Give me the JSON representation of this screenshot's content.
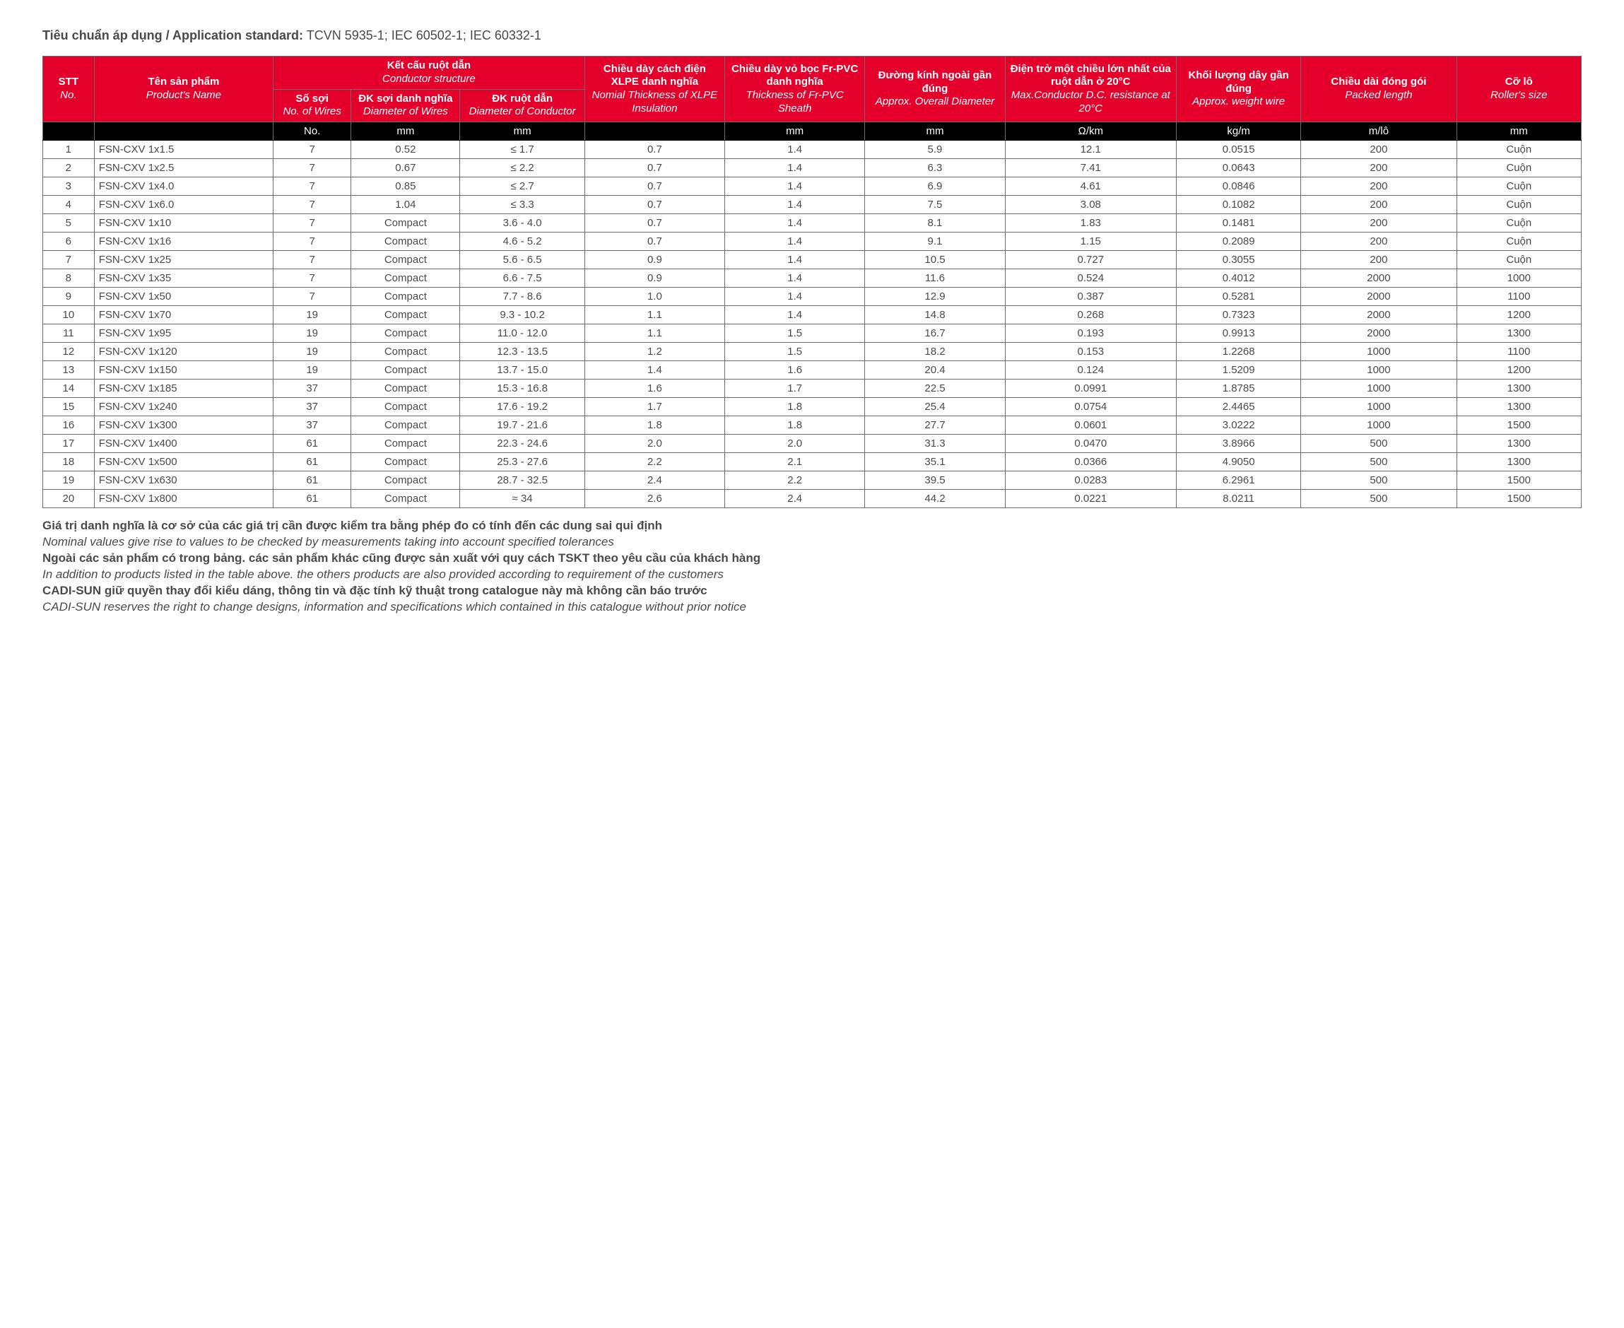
{
  "standard": {
    "label_vi": "Tiêu chuẩn áp dụng / Application standard:",
    "value": "TCVN 5935-1; IEC 60502-1; IEC 60332-1"
  },
  "headers": {
    "stt": {
      "vi": "STT",
      "en": "No."
    },
    "name": {
      "vi": "Tên sản phẩm",
      "en": "Product's Name"
    },
    "conductor_group": {
      "vi": "Kết cấu ruột dẫn",
      "en": "Conductor structure"
    },
    "no_wires": {
      "vi": "Số sợi",
      "en": "No. of Wires"
    },
    "dia_wires": {
      "vi": "ĐK sợi danh nghĩa",
      "en": "Diameter of Wires"
    },
    "dia_cond": {
      "vi": "ĐK ruột dẫn",
      "en": "Diameter of Conductor"
    },
    "xlpe": {
      "vi": "Chiều dày cách điện XLPE danh nghĩa",
      "en": "Nomial Thickness of XLPE Insulation"
    },
    "pvc": {
      "vi": "Chiều dày vỏ bọc Fr-PVC danh nghĩa",
      "en": "Thickness of Fr-PVC Sheath"
    },
    "od": {
      "vi": "Đường kính ngoài gần đúng",
      "en": "Approx. Overall Diameter"
    },
    "res": {
      "vi": "Điện trở một chiều lớn nhất của ruột dẫn ở 20°C",
      "en": "Max.Conductor D.C. resistance at 20°C"
    },
    "wt": {
      "vi": "Khối lượng dây gần đúng",
      "en": "Approx. weight wire"
    },
    "len": {
      "vi": "Chiều dài đóng gói",
      "en": "Packed length"
    },
    "roll": {
      "vi": "Cỡ lô",
      "en": "Roller's size"
    }
  },
  "units": {
    "stt": "",
    "name": "",
    "no_wires": "No.",
    "dia_wires": "mm",
    "dia_cond": "mm",
    "xlpe": "",
    "pvc": "mm",
    "od": "mm",
    "res": "Ω/km",
    "wt": "kg/m",
    "len": "m/lô",
    "roll": "mm"
  },
  "rows": [
    {
      "n": "1",
      "name": "FSN-CXV 1x1.5",
      "nw": "7",
      "dw": "0.52",
      "dc": "≤ 1.7",
      "xl": "0.7",
      "pv": "1.4",
      "od": "5.9",
      "re": "12.1",
      "wt": "0.0515",
      "ln": "200",
      "rl": "Cuộn"
    },
    {
      "n": "2",
      "name": "FSN-CXV 1x2.5",
      "nw": "7",
      "dw": "0.67",
      "dc": "≤ 2.2",
      "xl": "0.7",
      "pv": "1.4",
      "od": "6.3",
      "re": "7.41",
      "wt": "0.0643",
      "ln": "200",
      "rl": "Cuộn"
    },
    {
      "n": "3",
      "name": "FSN-CXV 1x4.0",
      "nw": "7",
      "dw": "0.85",
      "dc": "≤ 2.7",
      "xl": "0.7",
      "pv": "1.4",
      "od": "6.9",
      "re": "4.61",
      "wt": "0.0846",
      "ln": "200",
      "rl": "Cuộn"
    },
    {
      "n": "4",
      "name": "FSN-CXV 1x6.0",
      "nw": "7",
      "dw": "1.04",
      "dc": "≤ 3.3",
      "xl": "0.7",
      "pv": "1.4",
      "od": "7.5",
      "re": "3.08",
      "wt": "0.1082",
      "ln": "200",
      "rl": "Cuộn"
    },
    {
      "n": "5",
      "name": "FSN-CXV 1x10",
      "nw": "7",
      "dw": "Compact",
      "dc": "3.6 - 4.0",
      "xl": "0.7",
      "pv": "1.4",
      "od": "8.1",
      "re": "1.83",
      "wt": "0.1481",
      "ln": "200",
      "rl": "Cuộn"
    },
    {
      "n": "6",
      "name": "FSN-CXV 1x16",
      "nw": "7",
      "dw": "Compact",
      "dc": "4.6 - 5.2",
      "xl": "0.7",
      "pv": "1.4",
      "od": "9.1",
      "re": "1.15",
      "wt": "0.2089",
      "ln": "200",
      "rl": "Cuộn"
    },
    {
      "n": "7",
      "name": "FSN-CXV 1x25",
      "nw": "7",
      "dw": "Compact",
      "dc": "5.6 - 6.5",
      "xl": "0.9",
      "pv": "1.4",
      "od": "10.5",
      "re": "0.727",
      "wt": "0.3055",
      "ln": "200",
      "rl": "Cuộn"
    },
    {
      "n": "8",
      "name": "FSN-CXV 1x35",
      "nw": "7",
      "dw": "Compact",
      "dc": "6.6 - 7.5",
      "xl": "0.9",
      "pv": "1.4",
      "od": "11.6",
      "re": "0.524",
      "wt": "0.4012",
      "ln": "2000",
      "rl": "1000"
    },
    {
      "n": "9",
      "name": "FSN-CXV 1x50",
      "nw": "7",
      "dw": "Compact",
      "dc": "7.7 - 8.6",
      "xl": "1.0",
      "pv": "1.4",
      "od": "12.9",
      "re": "0.387",
      "wt": "0.5281",
      "ln": "2000",
      "rl": "1100"
    },
    {
      "n": "10",
      "name": "FSN-CXV 1x70",
      "nw": "19",
      "dw": "Compact",
      "dc": "9.3 - 10.2",
      "xl": "1.1",
      "pv": "1.4",
      "od": "14.8",
      "re": "0.268",
      "wt": "0.7323",
      "ln": "2000",
      "rl": "1200"
    },
    {
      "n": "11",
      "name": "FSN-CXV 1x95",
      "nw": "19",
      "dw": "Compact",
      "dc": "11.0 - 12.0",
      "xl": "1.1",
      "pv": "1.5",
      "od": "16.7",
      "re": "0.193",
      "wt": "0.9913",
      "ln": "2000",
      "rl": "1300"
    },
    {
      "n": "12",
      "name": "FSN-CXV 1x120",
      "nw": "19",
      "dw": "Compact",
      "dc": "12.3 - 13.5",
      "xl": "1.2",
      "pv": "1.5",
      "od": "18.2",
      "re": "0.153",
      "wt": "1.2268",
      "ln": "1000",
      "rl": "1100"
    },
    {
      "n": "13",
      "name": "FSN-CXV 1x150",
      "nw": "19",
      "dw": "Compact",
      "dc": "13.7 - 15.0",
      "xl": "1.4",
      "pv": "1.6",
      "od": "20.4",
      "re": "0.124",
      "wt": "1.5209",
      "ln": "1000",
      "rl": "1200"
    },
    {
      "n": "14",
      "name": "FSN-CXV 1x185",
      "nw": "37",
      "dw": "Compact",
      "dc": "15.3 - 16.8",
      "xl": "1.6",
      "pv": "1.7",
      "od": "22.5",
      "re": "0.0991",
      "wt": "1.8785",
      "ln": "1000",
      "rl": "1300"
    },
    {
      "n": "15",
      "name": "FSN-CXV 1x240",
      "nw": "37",
      "dw": "Compact",
      "dc": "17.6 - 19.2",
      "xl": "1.7",
      "pv": "1.8",
      "od": "25.4",
      "re": "0.0754",
      "wt": "2.4465",
      "ln": "1000",
      "rl": "1300"
    },
    {
      "n": "16",
      "name": "FSN-CXV 1x300",
      "nw": "37",
      "dw": "Compact",
      "dc": "19.7 - 21.6",
      "xl": "1.8",
      "pv": "1.8",
      "od": "27.7",
      "re": "0.0601",
      "wt": "3.0222",
      "ln": "1000",
      "rl": "1500"
    },
    {
      "n": "17",
      "name": "FSN-CXV 1x400",
      "nw": "61",
      "dw": "Compact",
      "dc": "22.3 - 24.6",
      "xl": "2.0",
      "pv": "2.0",
      "od": "31.3",
      "re": "0.0470",
      "wt": "3.8966",
      "ln": "500",
      "rl": "1300"
    },
    {
      "n": "18",
      "name": "FSN-CXV 1x500",
      "nw": "61",
      "dw": "Compact",
      "dc": "25.3 - 27.6",
      "xl": "2.2",
      "pv": "2.1",
      "od": "35.1",
      "re": "0.0366",
      "wt": "4.9050",
      "ln": "500",
      "rl": "1300"
    },
    {
      "n": "19",
      "name": "FSN-CXV 1x630",
      "nw": "61",
      "dw": "Compact",
      "dc": "28.7 - 32.5",
      "xl": "2.4",
      "pv": "2.2",
      "od": "39.5",
      "re": "0.0283",
      "wt": "6.2961",
      "ln": "500",
      "rl": "1500"
    },
    {
      "n": "20",
      "name": "FSN-CXV 1x800",
      "nw": "61",
      "dw": "Compact",
      "dc": "≈ 34",
      "xl": "2.6",
      "pv": "2.4",
      "od": "44.2",
      "re": "0.0221",
      "wt": "8.0211",
      "ln": "500",
      "rl": "1500"
    }
  ],
  "notes": {
    "l1b": "Giá trị danh nghĩa là cơ sở của các giá trị cần được kiểm tra bằng phép đo có tính đến các dung sai qui định",
    "l1i": "Nominal values give rise to values to be checked by measurements taking into account specified tolerances",
    "l2b": "Ngoài các sản phẩm có trong bảng. các sản phẩm khác cũng được sản xuất với quy cách TSKT theo yêu cầu của khách hàng",
    "l2i": "In addition to products listed in the table above. the others products are also provided according to requirement of the customers",
    "l3b": "CADI-SUN giữ quyền thay đổi kiểu dáng, thông tin và đặc tính kỹ thuật trong catalogue này mà không cần báo trước",
    "l3i": "CADI-SUN reserves the right to change designs, information and specifications which contained in this catalogue without prior notice"
  },
  "style": {
    "header_bg": "#e4002b",
    "unit_bg": "#000000",
    "text_color": "#4a4a4a",
    "border_color": "#6b6b6b"
  }
}
